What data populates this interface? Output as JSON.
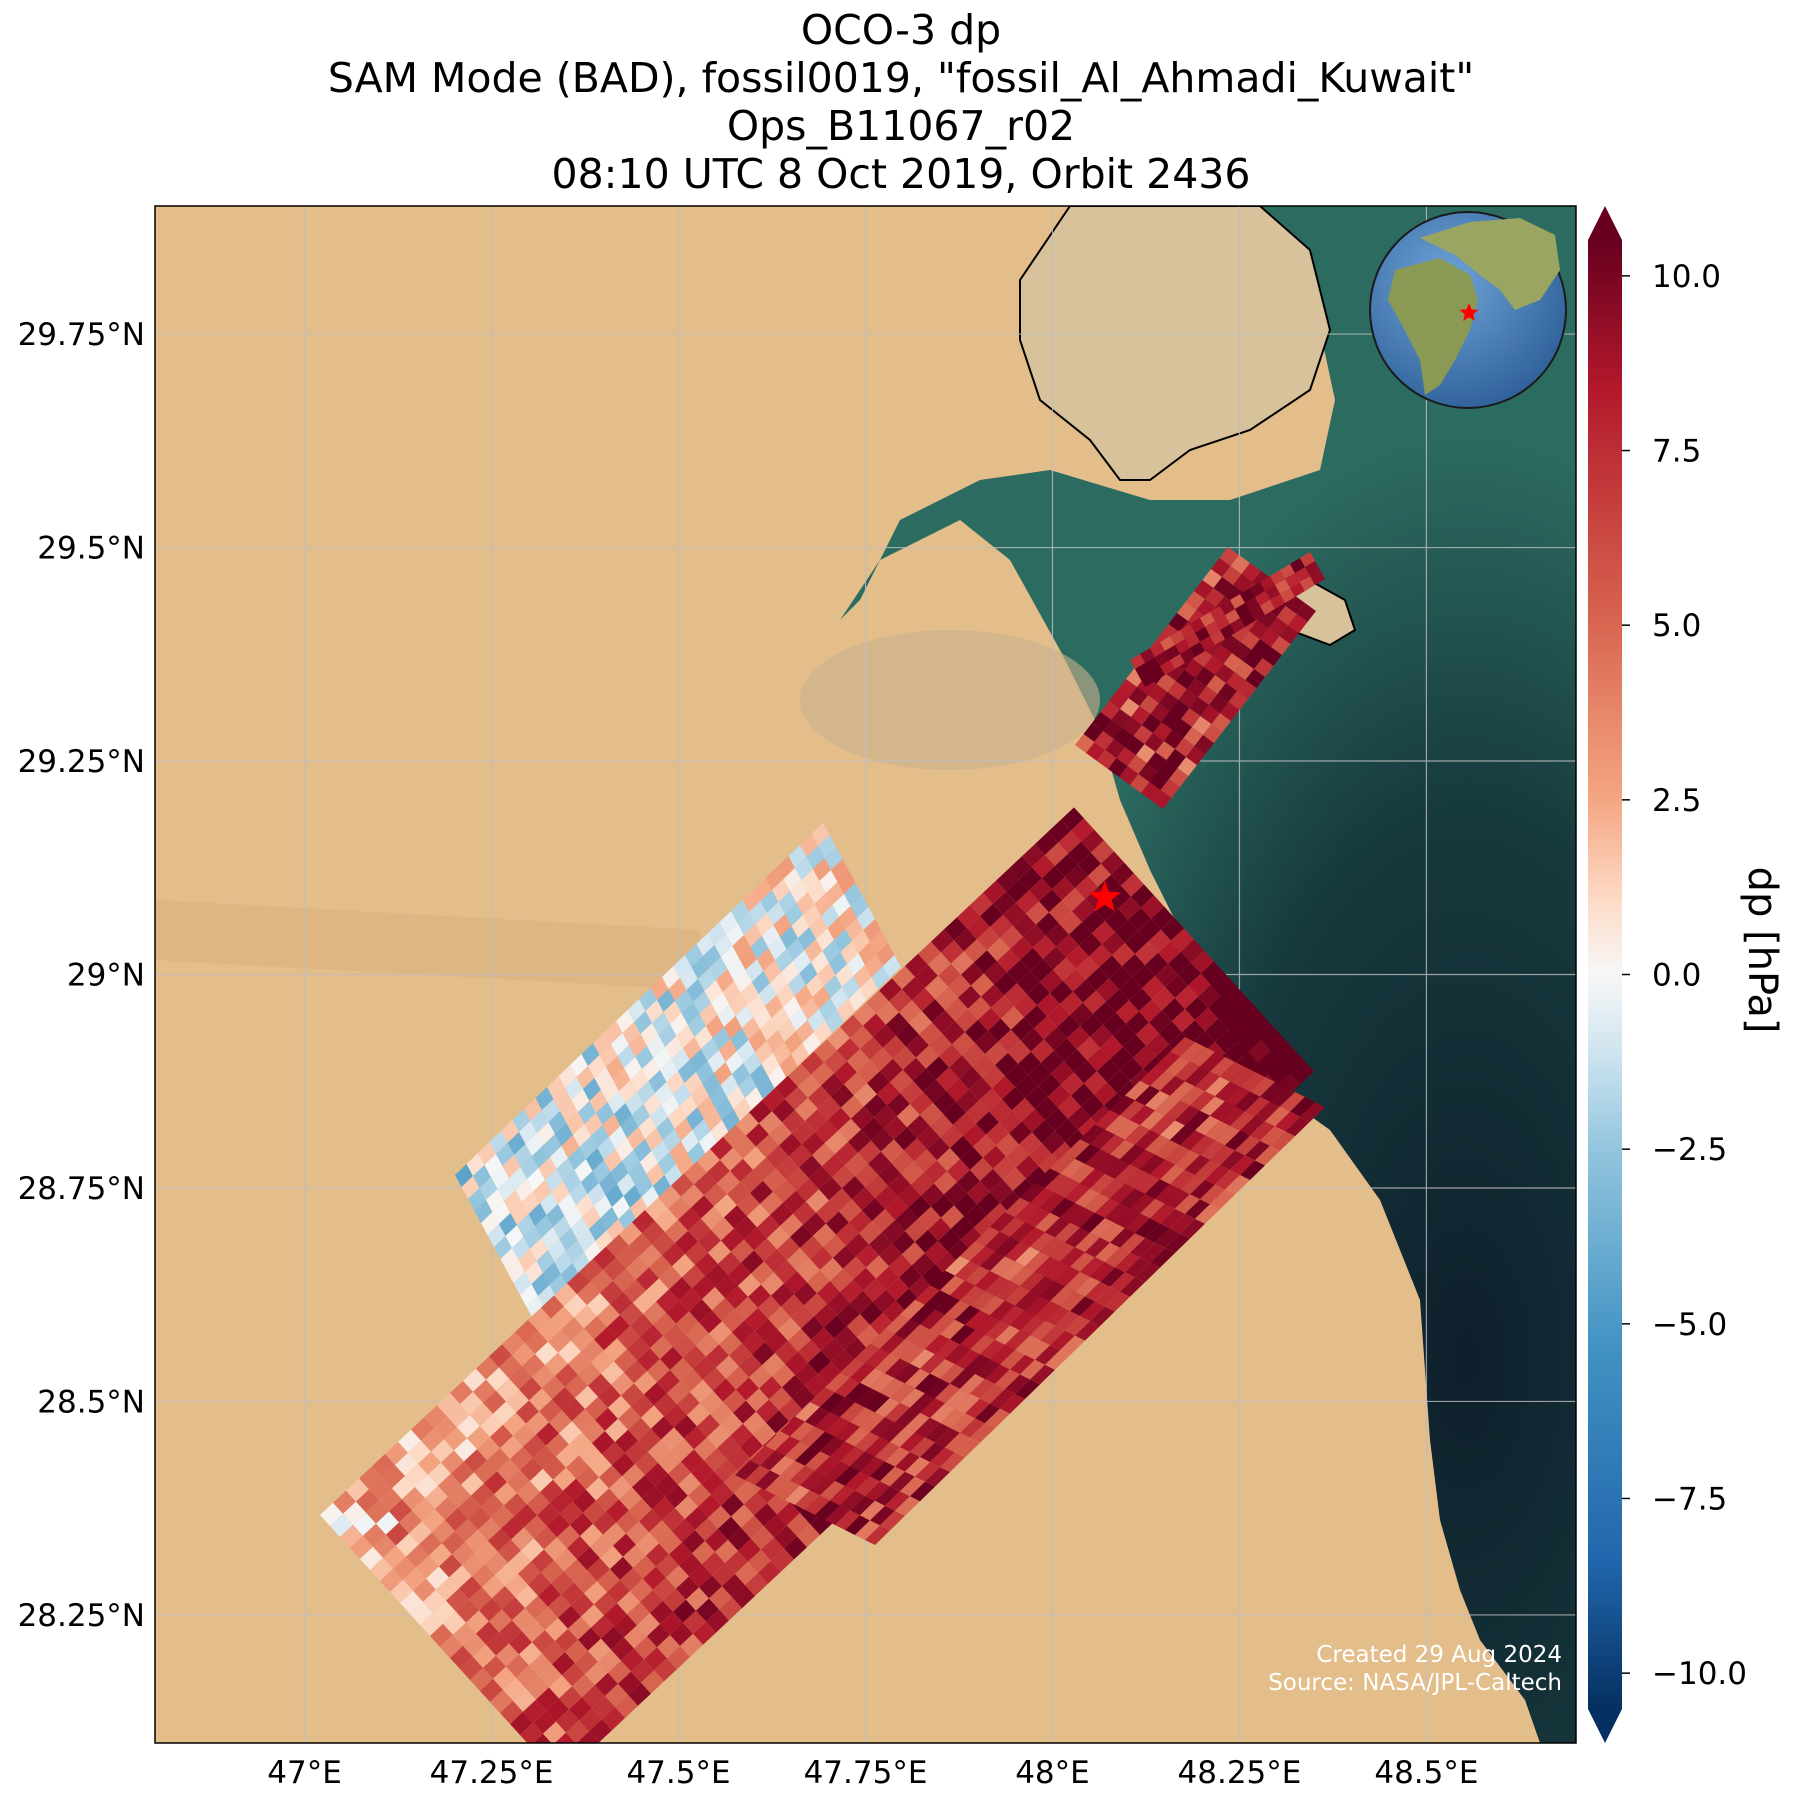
{
  "title": {
    "line1": "OCO-3 dp",
    "line2": "SAM Mode (BAD), fossil0019, \"fossil_Al_Ahmadi_Kuwait\"",
    "line3": "Ops_B11067_r02",
    "line4": "08:10 UTC 8 Oct 2019, Orbit 2436"
  },
  "map": {
    "lon_range": [
      46.8,
      48.7
    ],
    "lat_range": [
      28.1,
      29.9
    ],
    "x_ticks": [
      {
        "value": 47.0,
        "label": "47°E"
      },
      {
        "value": 47.25,
        "label": "47.25°E"
      },
      {
        "value": 47.5,
        "label": "47.5°E"
      },
      {
        "value": 47.75,
        "label": "47.75°E"
      },
      {
        "value": 48.0,
        "label": "48°E"
      },
      {
        "value": 48.25,
        "label": "48.25°E"
      },
      {
        "value": 48.5,
        "label": "48.5°E"
      }
    ],
    "y_ticks": [
      {
        "value": 28.25,
        "label": "28.25°N"
      },
      {
        "value": 28.5,
        "label": "28.5°N"
      },
      {
        "value": 28.75,
        "label": "28.75°N"
      },
      {
        "value": 29.0,
        "label": "29°N"
      },
      {
        "value": 29.25,
        "label": "29.25°N"
      },
      {
        "value": 29.5,
        "label": "29.5°N"
      },
      {
        "value": 29.75,
        "label": "29.75°N"
      }
    ],
    "grid": true,
    "target": {
      "name": "fossil_Al_Ahmadi_Kuwait",
      "lon": 48.07,
      "lat": 29.09,
      "marker": "star-icon",
      "color": "#ff0000"
    },
    "land_color": "#e3bd8a",
    "sea_color": "#1d4f4a",
    "deep_sea_color": "#0e1f2b"
  },
  "colorbar": {
    "label": "dp [hPa]",
    "range": [
      -11,
      11
    ],
    "ticks": [
      {
        "value": 10.0,
        "label": "10.0"
      },
      {
        "value": 7.5,
        "label": "7.5"
      },
      {
        "value": 5.0,
        "label": "5.0"
      },
      {
        "value": 2.5,
        "label": "2.5"
      },
      {
        "value": 0.0,
        "label": "0.0"
      },
      {
        "value": -2.5,
        "label": "−2.5"
      },
      {
        "value": -5.0,
        "label": "−5.0"
      },
      {
        "value": -7.5,
        "label": "−7.5"
      },
      {
        "value": -10.0,
        "label": "−10.0"
      }
    ],
    "colormap": "RdBu_r",
    "extend": "both"
  },
  "inset": {
    "type": "globe-locator",
    "icon": "globe-icon"
  },
  "credits": {
    "created": "Created 29 Aug 2024",
    "source": "Source: NASA/JPL-Caltech"
  }
}
